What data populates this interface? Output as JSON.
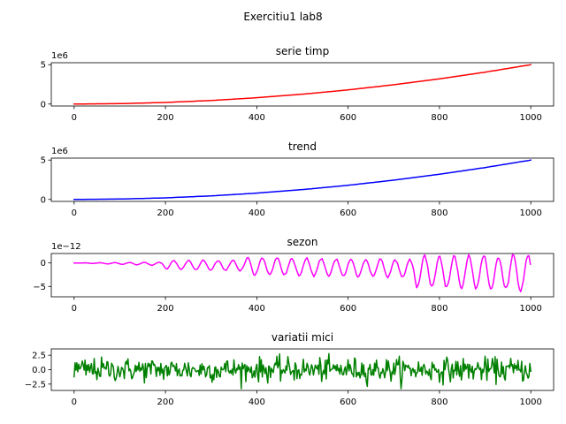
{
  "chart_data": {
    "suptitle": "Exercitiu1 lab8",
    "panels": [
      {
        "type": "line",
        "title": "serie timp",
        "color": "#ff0000",
        "offset_label": "1e6",
        "xlim": [
          -50,
          1050
        ],
        "ylim": [
          -0.25,
          5.25
        ],
        "x_ticks": [
          0,
          200,
          400,
          600,
          800,
          1000
        ],
        "x_tick_labels": [
          "0",
          "200",
          "400",
          "600",
          "800",
          "1000"
        ],
        "y_ticks": [
          0,
          5
        ],
        "y_tick_labels": [
          "0",
          "5"
        ],
        "x": [
          0,
          100,
          200,
          300,
          400,
          500,
          600,
          700,
          800,
          900,
          1000
        ],
        "y": [
          0.0,
          0.05,
          0.2,
          0.45,
          0.8,
          1.25,
          1.8,
          2.45,
          3.2,
          4.05,
          5.0
        ],
        "series": [
          {
            "name": ""
          }
        ]
      },
      {
        "type": "line",
        "title": "trend",
        "color": "#0000ff",
        "offset_label": "1e6",
        "xlim": [
          -50,
          1050
        ],
        "ylim": [
          -0.25,
          5.25
        ],
        "x_ticks": [
          0,
          200,
          400,
          600,
          800,
          1000
        ],
        "x_tick_labels": [
          "0",
          "200",
          "400",
          "600",
          "800",
          "1000"
        ],
        "y_ticks": [
          0,
          5
        ],
        "y_tick_labels": [
          "0",
          "5"
        ],
        "x": [
          0,
          100,
          200,
          300,
          400,
          500,
          600,
          700,
          800,
          900,
          1000
        ],
        "y": [
          0.0,
          0.05,
          0.2,
          0.45,
          0.8,
          1.25,
          1.8,
          2.45,
          3.2,
          4.05,
          5.0
        ],
        "series": [
          {
            "name": ""
          }
        ]
      },
      {
        "type": "line",
        "title": "sezon",
        "color": "#ff00ff",
        "offset_label": "1e−12",
        "xlim": [
          -50,
          1050
        ],
        "ylim": [
          -7.2,
          2.0
        ],
        "x_ticks": [
          0,
          200,
          400,
          600,
          800,
          1000
        ],
        "x_tick_labels": [
          "0",
          "200",
          "400",
          "600",
          "800",
          "1000"
        ],
        "y_ticks": [
          0,
          -5
        ],
        "y_tick_labels": [
          "0",
          "−5"
        ],
        "x": [
          0,
          100,
          190,
          200,
          370,
          380,
          500,
          740,
          750,
          900,
          1000
        ],
        "y_upper": [
          0.0,
          0.1,
          0.2,
          0.6,
          0.7,
          1.4,
          1.2,
          0.9,
          2.0,
          2.0,
          2.0
        ],
        "y_lower": [
          0.0,
          -0.3,
          -0.6,
          -1.4,
          -1.8,
          -2.8,
          -2.9,
          -3.3,
          -5.6,
          -6.0,
          -6.6
        ],
        "series": [
          {
            "name": ""
          }
        ]
      },
      {
        "type": "line",
        "title": "variatii mici",
        "color": "#008000",
        "offset_label": "",
        "xlim": [
          -50,
          1050
        ],
        "ylim": [
          -3.6,
          3.6
        ],
        "x_ticks": [
          0,
          200,
          400,
          600,
          800,
          1000
        ],
        "x_tick_labels": [
          "0",
          "200",
          "400",
          "600",
          "800",
          "1000"
        ],
        "y_ticks": [
          2.5,
          0,
          -2.5
        ],
        "y_tick_labels": [
          "2.5",
          "0.0",
          "−2.5"
        ],
        "x_range": [
          0,
          1000
        ],
        "mean": 0.0,
        "std": 1.0,
        "series": [
          {
            "name": ""
          }
        ]
      }
    ]
  }
}
